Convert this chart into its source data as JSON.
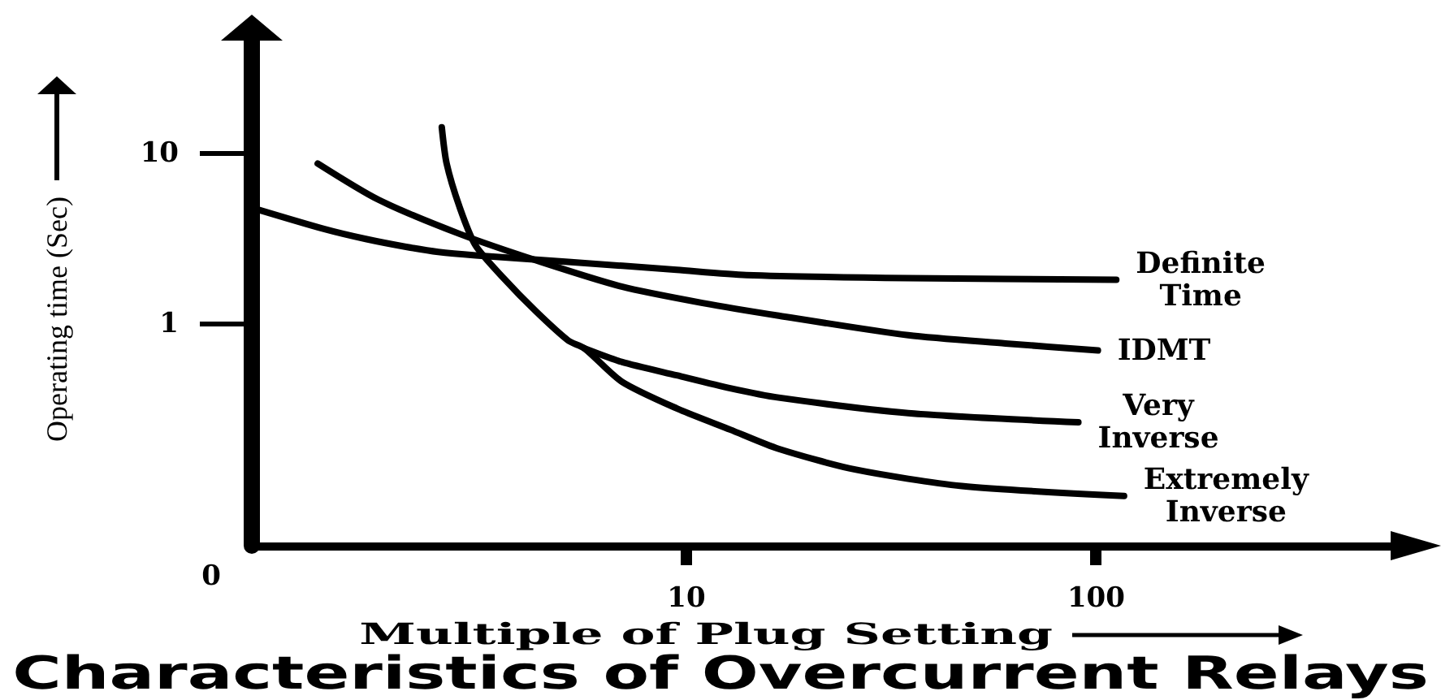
{
  "chart_data": {
    "type": "line",
    "title": "Characteristics of Overcurrent Relays",
    "xlabel": "Multiple of Plug Setting",
    "ylabel": "Operating time (Sec)",
    "annotations": [
      "0"
    ],
    "log": "xy",
    "xlim": [
      0.87,
      600
    ],
    "ylim": [
      0.05,
      55
    ],
    "xticks": [
      10,
      100
    ],
    "yticks": [
      1,
      10
    ],
    "marker": "none",
    "series": [
      {
        "name": "Definite Time",
        "color": "#000000",
        "x": [
          0.87,
          1.31,
          1.65,
          2.07,
          2.48,
          3.06,
          5.15,
          9.47,
          14,
          34.8,
          112
        ],
        "values": [
          4.82,
          3.61,
          3.16,
          2.84,
          2.65,
          2.53,
          2.32,
          2.08,
          1.94,
          1.86,
          1.82
        ]
      },
      {
        "name": "IDMT",
        "color": "#000000",
        "x": [
          1.26,
          1.77,
          2.8,
          4.41,
          6.95,
          10.95,
          16.8,
          34.8,
          60.1,
          101
        ],
        "values": [
          8.76,
          5.38,
          3.38,
          2.32,
          1.66,
          1.33,
          1.12,
          0.86,
          0.77,
          0.7
        ]
      },
      {
        "name": "Very Inverse",
        "color": "#000000",
        "x": [
          5.64,
          6.95,
          9.47,
          12.8,
          16.8,
          34.8,
          90.5
        ],
        "values": [
          0.72,
          0.6,
          0.5,
          0.42,
          0.37,
          0.3,
          0.265
        ]
      },
      {
        "name": "Extremely Inverse",
        "color": "#000000",
        "x": [
          2.53,
          2.6,
          2.8,
          3.06,
          3.58,
          4.29,
          5.15,
          5.64,
          6.95,
          9.47,
          12.8,
          16.8,
          25.8,
          47,
          117
        ],
        "values": [
          14.3,
          8.76,
          4.82,
          2.89,
          1.86,
          1.19,
          0.8,
          0.72,
          0.46,
          0.32,
          0.24,
          0.185,
          0.14,
          0.112,
          0.098
        ]
      }
    ]
  }
}
